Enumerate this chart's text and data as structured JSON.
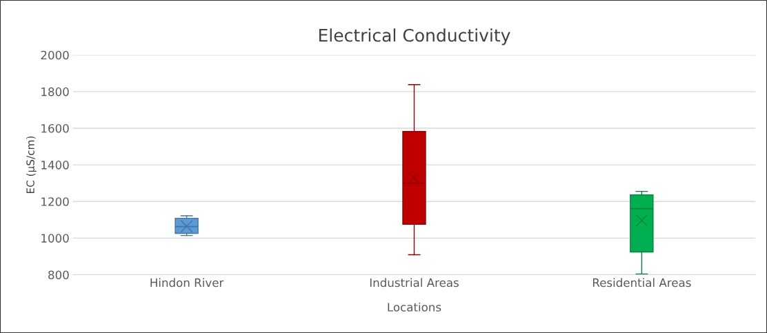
{
  "chart_data": {
    "type": "box",
    "title": "Electrical Conductivity",
    "xlabel": "Locations",
    "ylabel": "EC (µS/cm)",
    "categories": [
      "Hindon River",
      "Industrial Areas",
      "Residential Areas"
    ],
    "boxes": [
      {
        "low": 1014,
        "q1": 1026,
        "median": 1063,
        "q3": 1108,
        "high": 1122,
        "mean": 1065
      },
      {
        "low": 909,
        "q1": 1075,
        "median": 1300,
        "q3": 1582,
        "high": 1838,
        "mean": 1327
      },
      {
        "low": 804,
        "q1": 924,
        "median": 1161,
        "q3": 1236,
        "high": 1255,
        "mean": 1097
      }
    ],
    "colors": [
      "#5b9bd5",
      "#c00000",
      "#00b050"
    ],
    "ylim": [
      800,
      2000
    ],
    "yticks": [
      800,
      1000,
      1200,
      1400,
      1600,
      1800,
      2000
    ],
    "grid": "y"
  }
}
